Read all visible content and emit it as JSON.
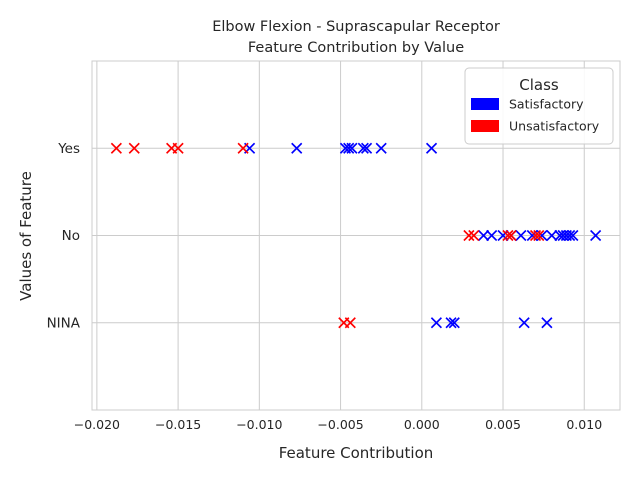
{
  "chart_data": {
    "type": "scatter",
    "title": "Elbow Flexion - Suprascapular Receptor",
    "subtitle": "Feature Contribution by Value",
    "xlabel": "Feature Contribution",
    "ylabel": "Values of Feature",
    "xlim": [
      -0.0203,
      0.0122
    ],
    "xticks": [
      -0.02,
      -0.015,
      -0.01,
      -0.005,
      0.0,
      0.005,
      0.01
    ],
    "xtick_labels": [
      "−0.020",
      "−0.015",
      "−0.010",
      "−0.005",
      "0.000",
      "0.005",
      "0.010"
    ],
    "categories": [
      "NINA",
      "No",
      "Yes"
    ],
    "grid": true,
    "marker": "x",
    "legend": {
      "title": "Class",
      "placement": "top-right",
      "entries": [
        {
          "name": "Satisfactory",
          "color": "#0000ff"
        },
        {
          "name": "Unsatisfactory",
          "color": "#ff0000"
        }
      ]
    },
    "series": [
      {
        "name": "Satisfactory",
        "color": "#0000ff",
        "points": [
          {
            "x": -0.0106,
            "y": "Yes"
          },
          {
            "x": -0.0077,
            "y": "Yes"
          },
          {
            "x": -0.0047,
            "y": "Yes"
          },
          {
            "x": -0.0045,
            "y": "Yes"
          },
          {
            "x": -0.0043,
            "y": "Yes"
          },
          {
            "x": -0.0036,
            "y": "Yes"
          },
          {
            "x": -0.0034,
            "y": "Yes"
          },
          {
            "x": -0.0025,
            "y": "Yes"
          },
          {
            "x": 0.0006,
            "y": "Yes"
          },
          {
            "x": 0.0038,
            "y": "No"
          },
          {
            "x": 0.0043,
            "y": "No"
          },
          {
            "x": 0.005,
            "y": "No"
          },
          {
            "x": 0.0055,
            "y": "No"
          },
          {
            "x": 0.0061,
            "y": "No"
          },
          {
            "x": 0.0068,
            "y": "No"
          },
          {
            "x": 0.0074,
            "y": "No"
          },
          {
            "x": 0.008,
            "y": "No"
          },
          {
            "x": 0.0085,
            "y": "No"
          },
          {
            "x": 0.0087,
            "y": "No"
          },
          {
            "x": 0.0089,
            "y": "No"
          },
          {
            "x": 0.0091,
            "y": "No"
          },
          {
            "x": 0.0093,
            "y": "No"
          },
          {
            "x": 0.0107,
            "y": "No"
          },
          {
            "x": 0.0009,
            "y": "NINA"
          },
          {
            "x": 0.0018,
            "y": "NINA"
          },
          {
            "x": 0.002,
            "y": "NINA"
          },
          {
            "x": 0.0063,
            "y": "NINA"
          },
          {
            "x": 0.0077,
            "y": "NINA"
          }
        ]
      },
      {
        "name": "Unsatisfactory",
        "color": "#ff0000",
        "points": [
          {
            "x": -0.0188,
            "y": "Yes"
          },
          {
            "x": -0.0177,
            "y": "Yes"
          },
          {
            "x": -0.0154,
            "y": "Yes"
          },
          {
            "x": -0.015,
            "y": "Yes"
          },
          {
            "x": -0.011,
            "y": "Yes"
          },
          {
            "x": 0.0029,
            "y": "No"
          },
          {
            "x": 0.0032,
            "y": "No"
          },
          {
            "x": 0.0053,
            "y": "No"
          },
          {
            "x": 0.0055,
            "y": "No"
          },
          {
            "x": 0.007,
            "y": "No"
          },
          {
            "x": 0.0072,
            "y": "No"
          },
          {
            "x": -0.0048,
            "y": "NINA"
          },
          {
            "x": -0.0044,
            "y": "NINA"
          }
        ]
      }
    ]
  }
}
